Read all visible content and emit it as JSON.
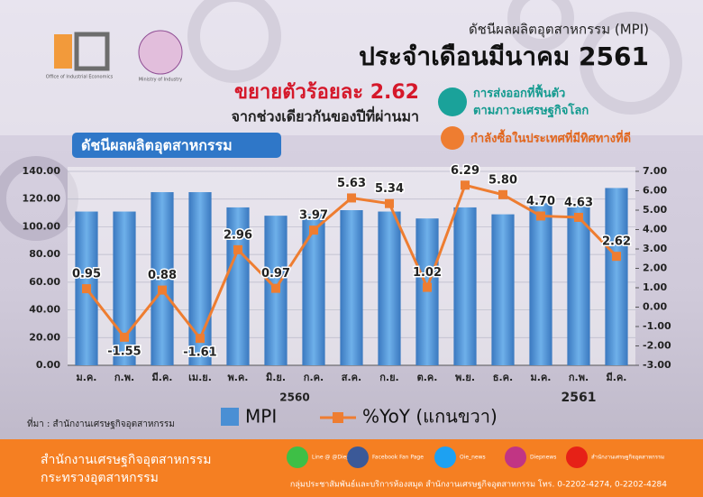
{
  "header": {
    "logo_oie": "Office of Industrial Economics",
    "logo_moi": "Ministry of Industry",
    "kicker": "ดัชนีผลผลิตอุตสาหกรรม (MPI)",
    "title": "ประจำเดือนมีนาคม 2561",
    "headline": "ขยายตัวร้อยละ 2.62",
    "subline": "จากช่วงเดียวกันของปีที่ผ่านมา"
  },
  "highlights": [
    "การส่งออกที่ฟื้นตัว",
    "ตามภาวะเศรษฐกิจโลก",
    "กำลังซื้อในประเทศที่มีทิศทางที่ดี"
  ],
  "chart_data": {
    "type": "bar_line",
    "title": "ดัชนีผลผลิตอุตสาหกรรม",
    "categories": [
      "ม.ค.",
      "ก.พ.",
      "มี.ค.",
      "เม.ย.",
      "พ.ค.",
      "มิ.ย.",
      "ก.ค.",
      "ส.ค.",
      "ก.ย.",
      "ต.ค.",
      "พ.ย.",
      "ธ.ค.",
      "ม.ค.",
      "ก.พ.",
      "มี.ค."
    ],
    "x_groups": [
      "2560",
      "2561"
    ],
    "series": [
      {
        "name": "MPI",
        "color": "#4a8fd4",
        "type": "bar",
        "values": [
          111,
          111,
          125,
          125,
          114,
          108,
          109,
          112,
          111,
          106,
          114,
          109,
          117,
          116,
          128
        ]
      },
      {
        "name": "%YoY (แกนขวา)",
        "color": "#ee7d31",
        "type": "line",
        "axis": "y2",
        "values": [
          0.95,
          -1.55,
          0.88,
          -1.61,
          2.96,
          0.97,
          3.97,
          5.63,
          5.34,
          1.02,
          6.29,
          5.8,
          4.7,
          4.63,
          2.62
        ],
        "value_labels": [
          "0.95",
          "-1.55",
          "0.88",
          "-1.61",
          "2.96",
          "0.97",
          "3.97",
          "5.63",
          "5.34",
          "1.02",
          "6.29",
          "5.80",
          "4.70",
          "4.63",
          "2.62"
        ]
      }
    ],
    "ylim": [
      0,
      140
    ],
    "yticks": [
      {
        "value": 0,
        "label": "0.00"
      },
      {
        "value": 20,
        "label": "20.00"
      },
      {
        "value": 40,
        "label": "40.00"
      },
      {
        "value": 60,
        "label": "60.00"
      },
      {
        "value": 80,
        "label": "80.00"
      },
      {
        "value": 100,
        "label": "100.00"
      },
      {
        "value": 120,
        "label": "120.00"
      },
      {
        "value": 140,
        "label": "140.00"
      }
    ],
    "y2lim": [
      -3,
      7
    ],
    "y2ticks": [
      {
        "value": -3,
        "label": "-3.00"
      },
      {
        "value": -2,
        "label": "-2.00"
      },
      {
        "value": -1,
        "label": "-1.00"
      },
      {
        "value": 0,
        "label": "0.00"
      },
      {
        "value": 1,
        "label": "1.00"
      },
      {
        "value": 2,
        "label": "2.00"
      },
      {
        "value": 3,
        "label": "3.00"
      },
      {
        "value": 4,
        "label": "4.00"
      },
      {
        "value": 5,
        "label": "5.00"
      },
      {
        "value": 6,
        "label": "6.00"
      },
      {
        "value": 7,
        "label": "7.00"
      }
    ],
    "grid": true,
    "source": "ที่มา : สำนักงานเศรษฐกิจอุตสาหกรรม"
  },
  "footer": {
    "org": "สำนักงานเศรษฐกิจอุตสาหกรรม",
    "ministry": "กระทรวงอุตสาหกรรม",
    "line": "Line @ @Diepr",
    "facebook": "Facebook Fan Page",
    "twitter": "Oie_news",
    "instagram": "Diepnews",
    "youtube": "สำนักงานเศรษฐกิจอุตสาหกรรม",
    "contact": "กลุ่มประชาสัมพันธ์และบริการห้องสมุด  สำนักงานเศรษฐกิจอุตสาหกรรม  โทร. 0-2202-4274, 0-2202-4284"
  }
}
